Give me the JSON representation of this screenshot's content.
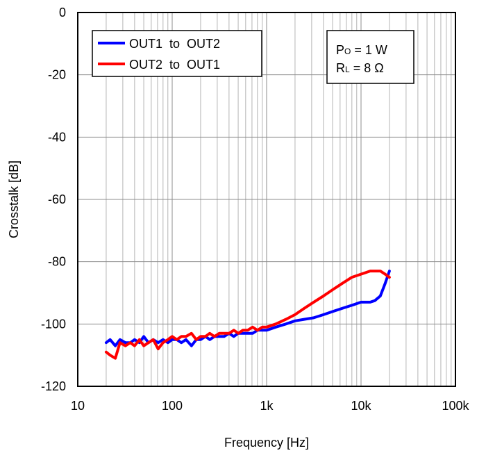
{
  "chart_data": {
    "type": "line",
    "title": "",
    "xlabel": "Frequency [Hz]",
    "ylabel": "Crosstalk [dB]",
    "xscale": "log",
    "xlim": [
      10,
      100000
    ],
    "ylim": [
      -120,
      0
    ],
    "grid": true,
    "x_tick_values": [
      10,
      100,
      1000,
      10000,
      100000
    ],
    "x_tick_labels": [
      "10",
      "100",
      "1k",
      "10k",
      "100k"
    ],
    "y_tick_values": [
      0,
      -20,
      -40,
      -60,
      -80,
      -100,
      -120
    ],
    "y_tick_labels": [
      "0",
      "-20",
      "-40",
      "-60",
      "-80",
      "-100",
      "-120"
    ],
    "legend_position": "top-left",
    "conditions": {
      "line1": {
        "main": "P",
        "sub": "O",
        "rest": " = 1 W"
      },
      "line2": {
        "main": "R",
        "sub": "L",
        "rest": " = 8 Ω"
      }
    },
    "series": [
      {
        "name": "OUT1  to  OUT2",
        "color": "#0000ff",
        "x": [
          20,
          22,
          25,
          28,
          32,
          36,
          40,
          45,
          50,
          56,
          63,
          71,
          80,
          90,
          100,
          112,
          125,
          140,
          160,
          180,
          200,
          225,
          250,
          280,
          315,
          355,
          400,
          450,
          500,
          560,
          630,
          710,
          800,
          900,
          1000,
          1250,
          1600,
          2000,
          2500,
          3150,
          4000,
          5000,
          6300,
          8000,
          10000,
          12500,
          14000,
          16000,
          18000,
          20000
        ],
        "values": [
          -106,
          -105,
          -107,
          -105,
          -106,
          -106,
          -105,
          -106,
          -104,
          -106,
          -105,
          -106,
          -105,
          -106,
          -105,
          -105,
          -106,
          -105,
          -107,
          -105,
          -105,
          -104,
          -105,
          -104,
          -104,
          -104,
          -103,
          -104,
          -103,
          -103,
          -103,
          -103,
          -102,
          -102,
          -102,
          -101,
          -100,
          -99,
          -98.5,
          -98,
          -97,
          -96,
          -95,
          -94,
          -93,
          -93,
          -92.5,
          -91,
          -87,
          -83
        ]
      },
      {
        "name": "OUT2  to  OUT1",
        "color": "#ff0000",
        "x": [
          20,
          22,
          25,
          28,
          32,
          36,
          40,
          45,
          50,
          56,
          63,
          71,
          80,
          90,
          100,
          112,
          125,
          140,
          160,
          180,
          200,
          225,
          250,
          280,
          315,
          355,
          400,
          450,
          500,
          560,
          630,
          710,
          800,
          900,
          1000,
          1250,
          1600,
          2000,
          2500,
          3150,
          4000,
          5000,
          6300,
          8000,
          10000,
          12500,
          14000,
          16000,
          18000,
          20000
        ],
        "values": [
          -109,
          -110,
          -111,
          -106,
          -107,
          -106,
          -107,
          -105,
          -107,
          -106,
          -105,
          -108,
          -106,
          -105,
          -104,
          -105,
          -104,
          -104,
          -103,
          -105,
          -104,
          -104,
          -103,
          -104,
          -103,
          -103,
          -103,
          -102,
          -103,
          -102,
          -102,
          -101,
          -102,
          -101,
          -101,
          -100,
          -98.5,
          -97,
          -95,
          -93,
          -91,
          -89,
          -87,
          -85,
          -84,
          -83,
          -83,
          -83,
          -84,
          -85
        ]
      }
    ]
  }
}
